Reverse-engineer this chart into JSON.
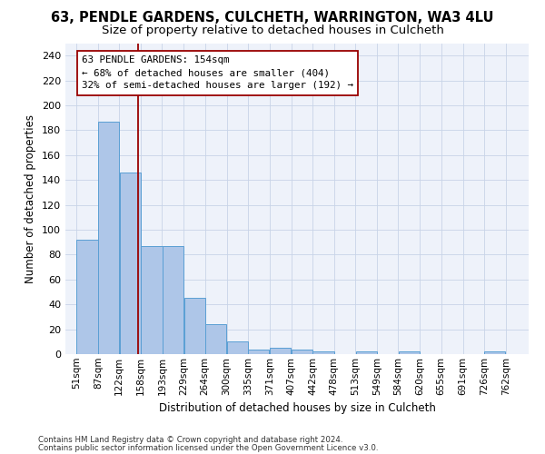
{
  "title_line1": "63, PENDLE GARDENS, CULCHETH, WARRINGTON, WA3 4LU",
  "title_line2": "Size of property relative to detached houses in Culcheth",
  "xlabel": "Distribution of detached houses by size in Culcheth",
  "ylabel": "Number of detached properties",
  "bar_edges": [
    51,
    87,
    122,
    158,
    193,
    229,
    264,
    300,
    335,
    371,
    407,
    442,
    478,
    513,
    549,
    584,
    620,
    655,
    691,
    726,
    762
  ],
  "bar_heights": [
    92,
    187,
    146,
    87,
    87,
    45,
    24,
    10,
    4,
    5,
    4,
    2,
    0,
    2,
    0,
    2,
    0,
    0,
    0,
    2,
    0
  ],
  "bar_color": "#aec6e8",
  "bar_edgecolor": "#5a9fd4",
  "grid_color": "#c8d4e8",
  "bg_color": "#eef2fa",
  "vline_x": 154,
  "vline_color": "#990000",
  "annotation_text": "63 PENDLE GARDENS: 154sqm\n← 68% of detached houses are smaller (404)\n32% of semi-detached houses are larger (192) →",
  "annotation_box_edgecolor": "#990000",
  "annotation_box_facecolor": "#ffffff",
  "ylim": [
    0,
    250
  ],
  "yticks": [
    0,
    20,
    40,
    60,
    80,
    100,
    120,
    140,
    160,
    180,
    200,
    220,
    240
  ],
  "xlim_left": 33,
  "xlim_right": 800,
  "footnote1": "Contains HM Land Registry data © Crown copyright and database right 2024.",
  "footnote2": "Contains public sector information licensed under the Open Government Licence v3.0.",
  "title_fontsize": 10.5,
  "subtitle_fontsize": 9.5,
  "axis_label_fontsize": 8.5,
  "tick_fontsize": 7.5
}
